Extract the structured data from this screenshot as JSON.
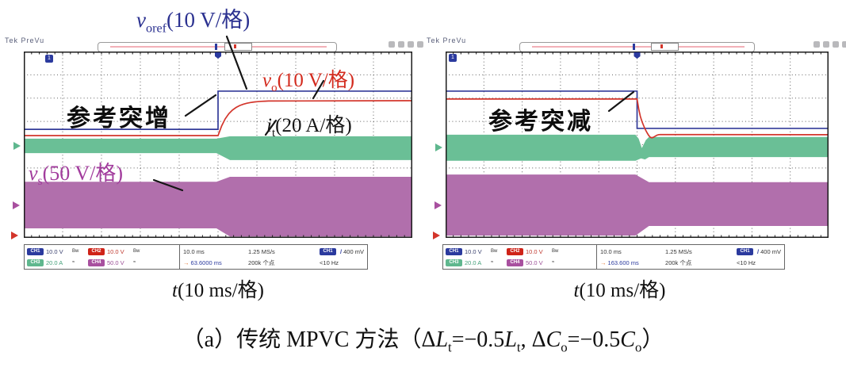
{
  "scope": {
    "brand_status": "Tek PreVu",
    "ch1_marker": "1",
    "readout": {
      "channels": [
        {
          "id": "CH1",
          "value": "10.0 V",
          "suffix": "Bw",
          "color": "#2b3a9e"
        },
        {
          "id": "CH2",
          "value": "10.0 V",
          "suffix": "Bw",
          "color": "#cf2318"
        },
        {
          "id": "CH3",
          "value": "20.0 A",
          "suffix": "≈",
          "color": "#5fb78e"
        },
        {
          "id": "CH4",
          "value": "50.0 V",
          "suffix": "≈",
          "color": "#a8509f"
        }
      ],
      "timebase": "10.0 ms",
      "sample_rate": "1.25 MS/s",
      "trigger_source": "CH1",
      "trigger_level": "400 mV",
      "record_points": "200k 个点",
      "trigger_freq": "<10 Hz",
      "h_position_left": "63.6000 ms",
      "h_position_right": "163.600 ms"
    }
  },
  "icons": {
    "trigger_slope": "/",
    "h_position_arrow": "→"
  },
  "labels": {
    "voref": {
      "base": "v",
      "sub": "oref",
      "scale": "(10 V/格)"
    },
    "vo": {
      "base": "v",
      "sub": "o",
      "scale": "(10 V/格)"
    },
    "it": {
      "base": "i",
      "sub": "t",
      "scale": "(20 A/格)"
    },
    "vs": {
      "base": "v",
      "sub": "s",
      "scale": "(50 V/格)"
    },
    "step_up": "参考突增",
    "step_down": "参考突减",
    "time_axis": {
      "base": "t",
      "scale": "(10 ms/格)"
    }
  },
  "caption": {
    "t1": "（a）传统 MPVC 方法（Δ",
    "t2": "L",
    "t3": "t",
    "t4": "=−0.5",
    "t5": "L",
    "t6": "t",
    "t7": ", Δ",
    "t8": "C",
    "t9": "o",
    "t10": "=−0.5",
    "t11": "C",
    "t12": "o",
    "t13": "）"
  },
  "colors": {
    "voref_trace": "#333b99",
    "vo_trace": "#d3352b",
    "it_trace": "#6abf96",
    "vs_trace": "#b16fac",
    "grid": "#606060",
    "annotation": "#141414"
  },
  "chart_data": [
    {
      "type": "line",
      "panel": "left",
      "annotation": "参考突增",
      "xlabel": "t(10 ms/格)",
      "x_divisions": 10,
      "y_divisions": 8,
      "step_at_div": 5,
      "grid": "dotted",
      "series": [
        {
          "name": "v_oref",
          "scale": "10 V/格",
          "color": "#333b99",
          "kind": "step",
          "before_div": 3.34,
          "after_div": 1.7
        },
        {
          "name": "v_o",
          "scale": "10 V/格",
          "color": "#d3352b",
          "kind": "step-smooth",
          "before_div": 3.61,
          "after_div": 2.11,
          "rise_div": 1.3,
          "dip_div": 0
        },
        {
          "name": "i_t",
          "scale": "20 A/格",
          "color": "#6abf96",
          "kind": "band",
          "center_before_div": 4.05,
          "half_before_div": 0.31,
          "center_after_div": 4.15,
          "half_after_div": 0.51,
          "glitch": false
        },
        {
          "name": "v_s",
          "scale": "50 V/格",
          "color": "#b16fac",
          "kind": "band",
          "center_before_div": 6.59,
          "half_before_div": 1.0,
          "center_after_div": 6.66,
          "half_after_div": 1.28,
          "glitch": false
        }
      ]
    },
    {
      "type": "line",
      "panel": "right",
      "annotation": "参考突减",
      "xlabel": "t(10 ms/格)",
      "x_divisions": 10,
      "y_divisions": 8,
      "step_at_div": 5,
      "grid": "dotted",
      "series": [
        {
          "name": "v_oref",
          "scale": "10 V/格",
          "color": "#333b99",
          "kind": "step",
          "before_div": 1.7,
          "after_div": 3.3
        },
        {
          "name": "v_o",
          "scale": "10 V/格",
          "color": "#d3352b",
          "kind": "step-smooth",
          "before_div": 2.04,
          "after_div": 3.57,
          "rise_div": 0.6,
          "dip_div": 0.22
        },
        {
          "name": "i_t",
          "scale": "20 A/格",
          "color": "#6abf96",
          "kind": "band",
          "center_before_div": 4.13,
          "half_before_div": 0.56,
          "center_after_div": 4.1,
          "half_after_div": 0.43,
          "glitch": true
        },
        {
          "name": "v_s",
          "scale": "50 V/格",
          "color": "#b16fac",
          "kind": "band",
          "center_before_div": 6.59,
          "half_before_div": 1.31,
          "center_after_div": 6.55,
          "half_after_div": 0.94,
          "glitch": false
        }
      ]
    }
  ]
}
